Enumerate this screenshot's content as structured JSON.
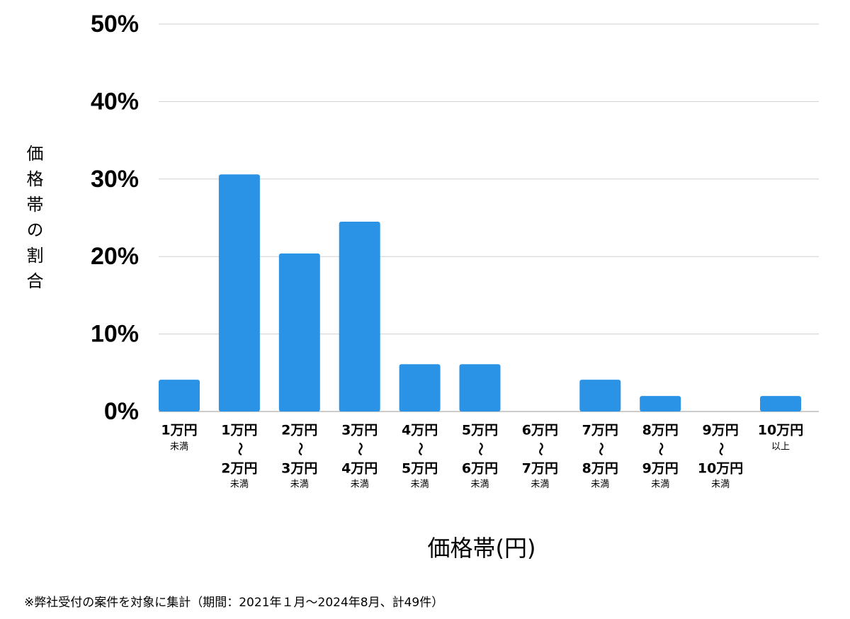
{
  "chart_data": {
    "type": "bar",
    "y_label": "価格帯の割合",
    "x_label": "価格帯(円)",
    "footnote": "※弊社受付の案件を対象に集計（期間：2021年１月〜2024年8月、計49件）",
    "categories": [
      [
        "1万円",
        "未満"
      ],
      [
        "1万円",
        "〜",
        "2万円",
        "未満"
      ],
      [
        "2万円",
        "〜",
        "3万円",
        "未満"
      ],
      [
        "3万円",
        "〜",
        "4万円",
        "未満"
      ],
      [
        "4万円",
        "〜",
        "5万円",
        "未満"
      ],
      [
        "5万円",
        "〜",
        "6万円",
        "未満"
      ],
      [
        "6万円",
        "〜",
        "7万円",
        "未満"
      ],
      [
        "7万円",
        "〜",
        "8万円",
        "未満"
      ],
      [
        "8万円",
        "〜",
        "9万円",
        "未満"
      ],
      [
        "9万円",
        "〜",
        "10万円",
        "未満"
      ],
      [
        "10万円",
        "以上"
      ]
    ],
    "values": [
      4.1,
      30.6,
      20.4,
      24.5,
      6.1,
      6.1,
      0,
      4.1,
      2.0,
      0,
      2.0
    ],
    "color": "#2a93e6",
    "ylim": [
      0,
      50
    ],
    "yticks": [
      {
        "value": 0,
        "label": "0%"
      },
      {
        "value": 10,
        "label": "10%"
      },
      {
        "value": 20,
        "label": "20%"
      },
      {
        "value": 30,
        "label": "30%"
      },
      {
        "value": 40,
        "label": "40%"
      },
      {
        "value": 50,
        "label": "50%"
      }
    ],
    "grid": true
  }
}
